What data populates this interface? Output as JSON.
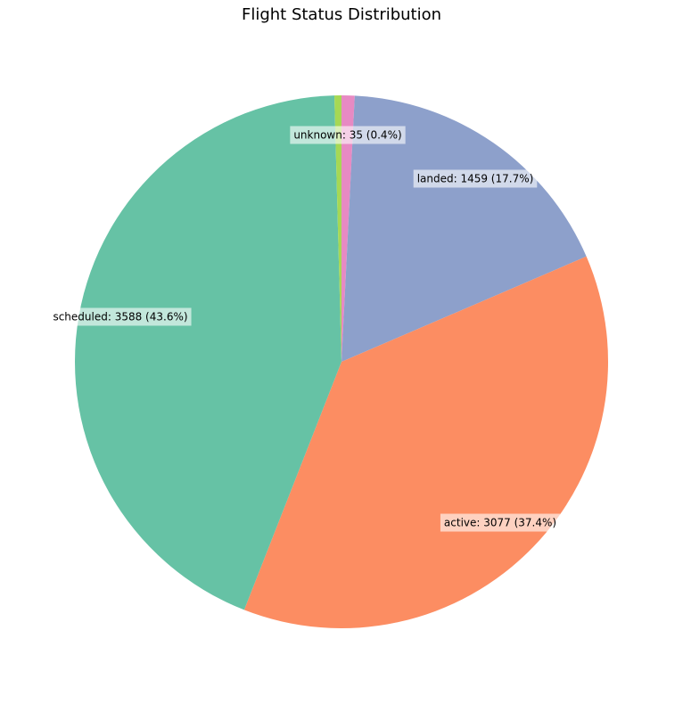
{
  "chart_data": {
    "type": "pie",
    "title": "Flight Status Distribution",
    "slices": [
      {
        "name": "landed",
        "value": 1459,
        "pct": "17.7%",
        "color": "#8da0cb"
      },
      {
        "name": "active",
        "value": 3077,
        "pct": "37.4%",
        "color": "#fc8d62"
      },
      {
        "name": "scheduled",
        "value": 3588,
        "pct": "43.6%",
        "color": "#66c2a5"
      },
      {
        "name": "unknown",
        "value": 35,
        "pct": "0.4%",
        "color": "#a6d854"
      },
      {
        "name": "",
        "value": 65,
        "pct": "",
        "color": "#e78ac3"
      }
    ],
    "start": "top",
    "direction": "clockwise"
  }
}
